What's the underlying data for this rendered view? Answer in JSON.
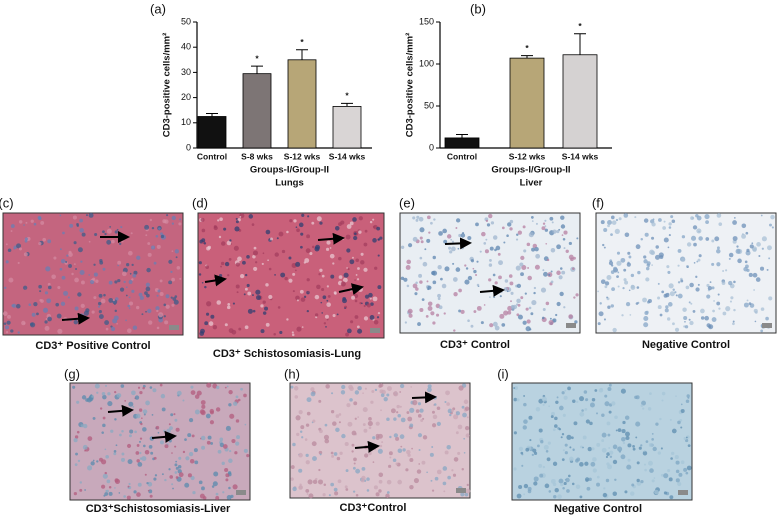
{
  "chart_data": [
    {
      "type": "bar",
      "label": "(a)",
      "ylabel": "CD3-positive cells/mm²",
      "xlabel_lines": [
        "Groups-I/Group-II",
        "Lungs"
      ],
      "categories": [
        "Control",
        "S-8 wks",
        "S-12 wks",
        "S-14 wks"
      ],
      "values": [
        12.5,
        29.5,
        35,
        16.5
      ],
      "errors": [
        1.2,
        3,
        4,
        1.2
      ],
      "colors": [
        "#111111",
        "#7d7575",
        "#b7a677",
        "#d9d5d5"
      ],
      "annotations": [
        {
          "category": "S-8 wks",
          "text": "*"
        },
        {
          "category": "S-12 wks",
          "text": "*"
        },
        {
          "category": "S-14 wks",
          "text": "*"
        }
      ],
      "ylim": [
        0,
        50
      ],
      "yticks": [
        0,
        10,
        20,
        30,
        40,
        50
      ]
    },
    {
      "type": "bar",
      "label": "(b)",
      "ylabel": "CD3-positive cells/mm²",
      "xlabel_lines": [
        "Groups-I/Group-II",
        "Liver"
      ],
      "categories": [
        "Control",
        "S-12 wks",
        "S-14 wks"
      ],
      "values": [
        12,
        107,
        111
      ],
      "errors": [
        4,
        3,
        25
      ],
      "colors": [
        "#111111",
        "#b7a677",
        "#d5d2d2"
      ],
      "annotations": [
        {
          "category": "S-12 wks",
          "text": "*"
        },
        {
          "category": "S-14 wks",
          "text": "*"
        }
      ],
      "ylim": [
        0,
        150
      ],
      "yticks": [
        0,
        50,
        100,
        150
      ]
    }
  ],
  "panels": [
    {
      "label": "(c)",
      "caption": "CD3⁺ Positive Control"
    },
    {
      "label": "(d)",
      "caption": "CD3⁺ Schistosomiasis-Lung"
    },
    {
      "label": "(e)",
      "caption": "CD3⁺ Control"
    },
    {
      "label": "(f)",
      "caption": "Negative Control"
    },
    {
      "label": "(g)",
      "caption": "CD3⁺Schistosomiasis-Liver"
    },
    {
      "label": "(h)",
      "caption": "CD3⁺Control"
    },
    {
      "label": "(i)",
      "caption": "Negative Control"
    }
  ]
}
